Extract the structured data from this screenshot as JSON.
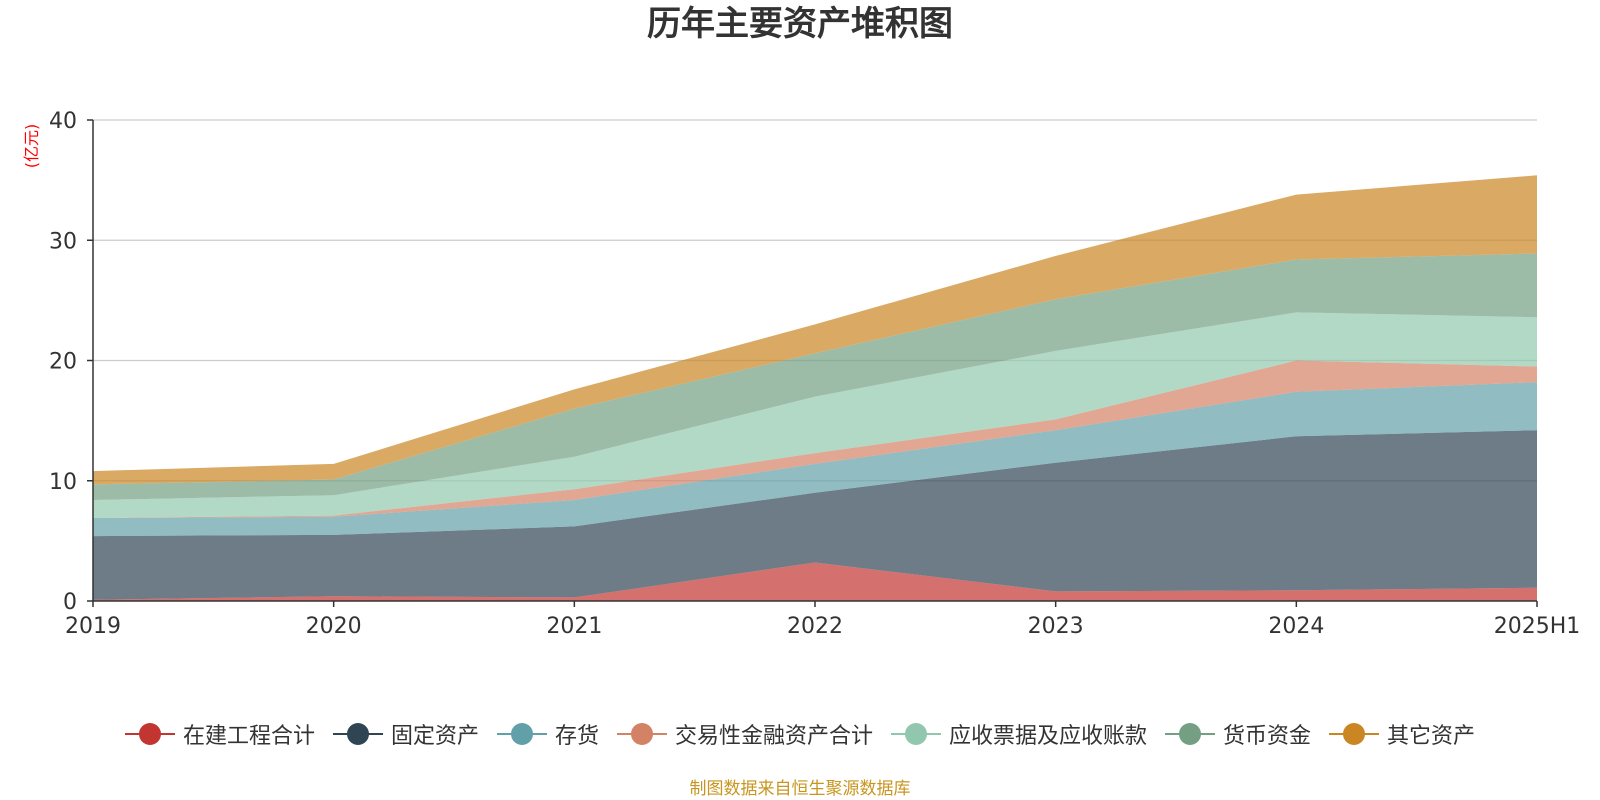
{
  "chart_data": {
    "type": "area",
    "stacked": true,
    "title": "历年主要资产堆积图",
    "ylabel": "(亿元)",
    "xlabel": "",
    "categories": [
      "2019",
      "2020",
      "2021",
      "2022",
      "2023",
      "2024",
      "2025H1"
    ],
    "ylim": [
      0,
      40
    ],
    "yticks": [
      0,
      10,
      20,
      30,
      40
    ],
    "grid": true,
    "legend_position": "bottom",
    "series": [
      {
        "name": "在建工程合计",
        "color": "#c23531",
        "values": [
          0.1,
          0.4,
          0.3,
          3.2,
          0.8,
          0.9,
          1.1
        ]
      },
      {
        "name": "固定资产",
        "color": "#2f4554",
        "values": [
          5.3,
          5.1,
          5.9,
          5.8,
          10.7,
          12.8,
          13.1
        ]
      },
      {
        "name": "存货",
        "color": "#61a0a8",
        "values": [
          1.5,
          1.5,
          2.2,
          2.4,
          2.7,
          3.7,
          4.0
        ]
      },
      {
        "name": "交易性金融资产合计",
        "color": "#d48265",
        "values": [
          0.0,
          0.1,
          0.9,
          0.9,
          0.9,
          2.6,
          1.3
        ]
      },
      {
        "name": "应收票据及应收账款",
        "color": "#91c7ae",
        "values": [
          1.5,
          1.7,
          2.7,
          4.7,
          5.7,
          4.0,
          4.1
        ]
      },
      {
        "name": "货币资金",
        "color": "#749f83",
        "values": [
          1.3,
          1.3,
          4.0,
          3.6,
          4.3,
          4.4,
          5.3
        ]
      },
      {
        "name": "其它资产",
        "color": "#ca8622",
        "values": [
          1.1,
          1.3,
          1.6,
          2.4,
          3.6,
          5.4,
          6.5
        ]
      }
    ]
  },
  "footer": "制图数据来自恒生聚源数据库"
}
